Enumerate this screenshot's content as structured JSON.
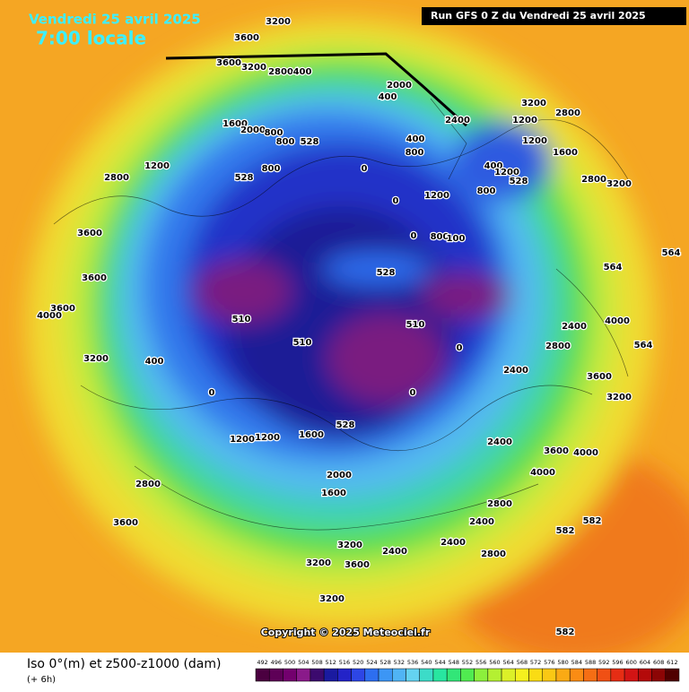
{
  "header": {
    "date": "Vendredi 25 avril 2025",
    "time": "7:00 locale",
    "run": "Run GFS 0 Z du Vendredi 25 avril 2025"
  },
  "map_labels": [
    "3200",
    "3600",
    "3600",
    "3200",
    "2800",
    "400",
    "2000",
    "400",
    "2400",
    "3200",
    "1200",
    "2800",
    "1600",
    "2000",
    "800",
    "800",
    "528",
    "400",
    "800",
    "1200",
    "2800",
    "800",
    "528",
    "0",
    "1200",
    "1600",
    "400",
    "1200",
    "528",
    "2800",
    "3200",
    "0",
    "1200",
    "800",
    "3600",
    "0",
    "800",
    "100",
    "528",
    "3600",
    "4000",
    "3600",
    "510",
    "510",
    "510",
    "0",
    "2400",
    "2800",
    "2400",
    "3200",
    "400",
    "0",
    "0",
    "528",
    "1200",
    "1200",
    "1600",
    "2400",
    "3600",
    "4000",
    "4000",
    "2800",
    "2000",
    "1600",
    "2800",
    "3600",
    "2400",
    "3200",
    "2400",
    "2800",
    "3200",
    "3600",
    "2400",
    "3200",
    "582",
    "582",
    "582",
    "564",
    "564",
    "4000",
    "564",
    "3600",
    "3200"
  ],
  "copyright": "Copyright © 2025 Meteociel.fr",
  "footer": {
    "title": "Iso 0°(m) et z500-z1000 (dam)",
    "step": "(+ 6h)"
  },
  "scale": {
    "values": [
      492,
      496,
      500,
      504,
      508,
      512,
      516,
      520,
      524,
      528,
      532,
      536,
      540,
      544,
      548,
      552,
      556,
      560,
      564,
      568,
      572,
      576,
      580,
      584,
      588,
      592,
      596,
      600,
      604,
      608,
      612
    ],
    "colors": [
      "#4b0040",
      "#5e0057",
      "#73006e",
      "#8a1a8a",
      "#3c0a6e",
      "#1a1aa0",
      "#2323c8",
      "#2d46e6",
      "#2d6ef0",
      "#3c96f5",
      "#50b4f5",
      "#64d2f0",
      "#3cdcc8",
      "#28e6a0",
      "#32e678",
      "#50eb50",
      "#8cf03c",
      "#b4f032",
      "#dcf028",
      "#f5f01e",
      "#fadc14",
      "#fac814",
      "#faaa14",
      "#fa8c14",
      "#f56e14",
      "#f05014",
      "#e62d14",
      "#d21414",
      "#b40a0a",
      "#8c0505",
      "#500000"
    ]
  }
}
